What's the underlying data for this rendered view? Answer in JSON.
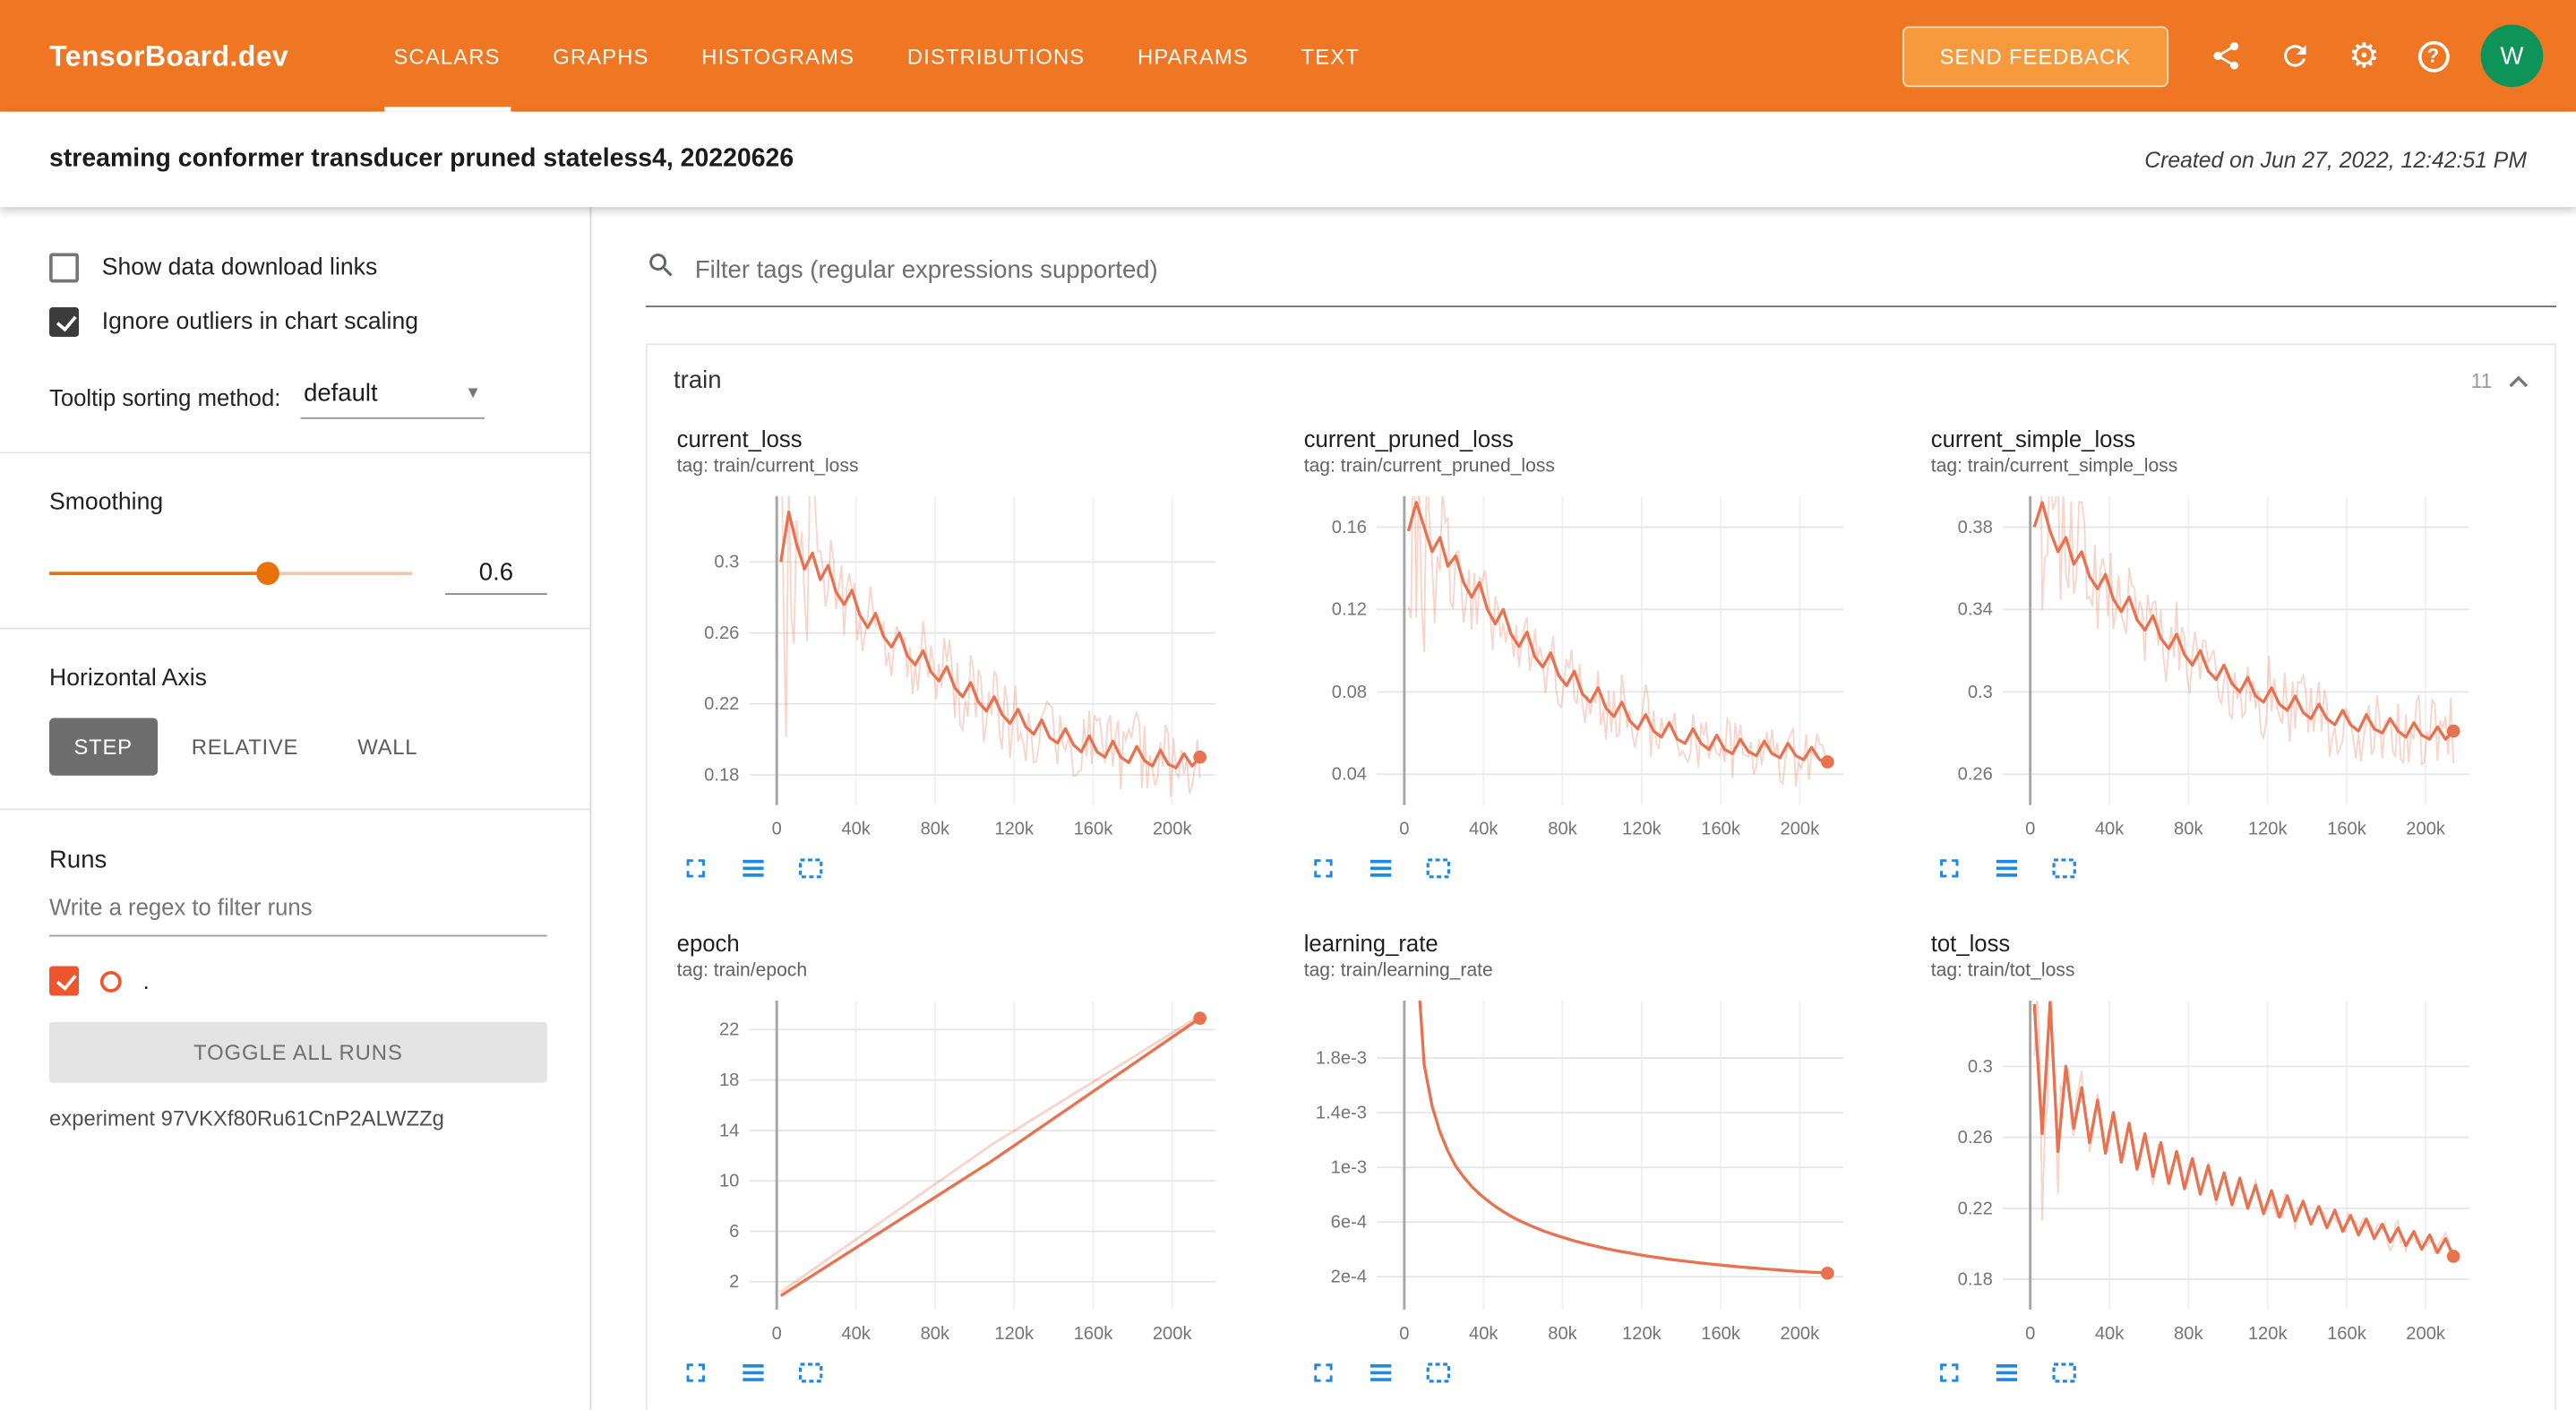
{
  "colors": {
    "header": "#ef7622",
    "accent_orange": "#e8710a",
    "run_color": "#ef562d",
    "chart_line": "#e8714f",
    "icon_blue": "#1e88e5",
    "avatar_green": "#0e9458"
  },
  "header": {
    "logo": "TensorBoard.dev",
    "tabs": [
      {
        "label": "SCALARS",
        "active": true
      },
      {
        "label": "GRAPHS",
        "active": false
      },
      {
        "label": "HISTOGRAMS",
        "active": false
      },
      {
        "label": "DISTRIBUTIONS",
        "active": false
      },
      {
        "label": "HPARAMS",
        "active": false
      },
      {
        "label": "TEXT",
        "active": false
      }
    ],
    "feedback_label": "SEND FEEDBACK",
    "avatar": "W"
  },
  "subheader": {
    "title": "streaming conformer transducer pruned stateless4, 20220626",
    "created": "Created on Jun 27, 2022, 12:42:51 PM"
  },
  "sidebar": {
    "show_links_label": "Show data download links",
    "ignore_outliers_label": "Ignore outliers in chart scaling",
    "tooltip_label": "Tooltip sorting method:",
    "tooltip_value": "default",
    "smoothing_label": "Smoothing",
    "smoothing_value": "0.6",
    "haxis_label": "Horizontal Axis",
    "haxis_options": [
      "STEP",
      "RELATIVE",
      "WALL"
    ],
    "haxis_active": "STEP",
    "runs_label": "Runs",
    "runs_filter_placeholder": "Write a regex to filter runs",
    "run_name": ".",
    "toggle_all_label": "TOGGLE ALL RUNS",
    "experiment": "experiment 97VKXf80Ru61CnP2ALWZZg"
  },
  "main": {
    "filter_placeholder": "Filter tags (regular expressions supported)",
    "group": {
      "name": "train",
      "count": "11"
    }
  },
  "chart_data": [
    {
      "type": "line",
      "title": "current_loss",
      "tag": "tag: train/current_loss",
      "x_start": 2000,
      "x_end": 214000,
      "xlim": [
        -14000,
        222000
      ],
      "xticks": [
        0,
        40000,
        80000,
        120000,
        160000,
        200000
      ],
      "xtick_labels": [
        "0",
        "40k",
        "80k",
        "120k",
        "160k",
        "200k"
      ],
      "ylim": [
        0.163,
        0.337
      ],
      "yticks": [
        0.18,
        0.22,
        0.26,
        0.3
      ],
      "ytick_labels": [
        "0.18",
        "0.22",
        "0.26",
        "0.3"
      ],
      "noise": 0.02,
      "spike": 7,
      "end_dot": true,
      "series": [
        {
          "name": "smoothed",
          "role": "smoothed",
          "values": [
            0.3,
            0.328,
            0.31,
            0.296,
            0.305,
            0.29,
            0.298,
            0.283,
            0.276,
            0.284,
            0.27,
            0.263,
            0.271,
            0.258,
            0.252,
            0.26,
            0.247,
            0.242,
            0.25,
            0.238,
            0.233,
            0.241,
            0.229,
            0.224,
            0.232,
            0.221,
            0.216,
            0.224,
            0.214,
            0.209,
            0.217,
            0.207,
            0.203,
            0.211,
            0.201,
            0.198,
            0.206,
            0.197,
            0.193,
            0.202,
            0.193,
            0.19,
            0.199,
            0.19,
            0.187,
            0.196,
            0.188,
            0.185,
            0.194,
            0.186,
            0.184,
            0.192,
            0.185,
            0.19
          ]
        }
      ]
    },
    {
      "type": "line",
      "title": "current_pruned_loss",
      "tag": "tag: train/current_pruned_loss",
      "x_start": 2000,
      "x_end": 214000,
      "xlim": [
        -14000,
        222000
      ],
      "xticks": [
        0,
        40000,
        80000,
        120000,
        160000,
        200000
      ],
      "xtick_labels": [
        "0",
        "40k",
        "80k",
        "120k",
        "160k",
        "200k"
      ],
      "ylim": [
        0.025,
        0.175
      ],
      "yticks": [
        0.04,
        0.08,
        0.12,
        0.16
      ],
      "ytick_labels": [
        "0.04",
        "0.08",
        "0.12",
        "0.16"
      ],
      "noise": 0.016,
      "spike": 7,
      "end_dot": true,
      "series": [
        {
          "name": "smoothed",
          "role": "smoothed",
          "values": [
            0.158,
            0.172,
            0.16,
            0.148,
            0.155,
            0.141,
            0.146,
            0.133,
            0.126,
            0.133,
            0.12,
            0.113,
            0.12,
            0.108,
            0.102,
            0.109,
            0.097,
            0.092,
            0.099,
            0.088,
            0.083,
            0.09,
            0.079,
            0.075,
            0.082,
            0.072,
            0.068,
            0.075,
            0.066,
            0.062,
            0.069,
            0.061,
            0.058,
            0.065,
            0.057,
            0.055,
            0.062,
            0.055,
            0.052,
            0.059,
            0.052,
            0.05,
            0.057,
            0.051,
            0.049,
            0.056,
            0.05,
            0.048,
            0.055,
            0.049,
            0.047,
            0.053,
            0.047,
            0.046
          ]
        }
      ]
    },
    {
      "type": "line",
      "title": "current_simple_loss",
      "tag": "tag: train/current_simple_loss",
      "x_start": 2000,
      "x_end": 214000,
      "xlim": [
        -14000,
        222000
      ],
      "xticks": [
        0,
        40000,
        80000,
        120000,
        160000,
        200000
      ],
      "xtick_labels": [
        "0",
        "40k",
        "80k",
        "120k",
        "160k",
        "200k"
      ],
      "ylim": [
        0.245,
        0.395
      ],
      "yticks": [
        0.26,
        0.3,
        0.34,
        0.38
      ],
      "ytick_labels": [
        "0.26",
        "0.3",
        "0.34",
        "0.38"
      ],
      "noise": 0.018,
      "spike": 7,
      "end_dot": true,
      "series": [
        {
          "name": "smoothed",
          "role": "smoothed",
          "values": [
            0.38,
            0.392,
            0.378,
            0.368,
            0.375,
            0.362,
            0.368,
            0.356,
            0.35,
            0.357,
            0.345,
            0.339,
            0.346,
            0.335,
            0.33,
            0.337,
            0.326,
            0.321,
            0.328,
            0.318,
            0.313,
            0.32,
            0.31,
            0.306,
            0.313,
            0.304,
            0.3,
            0.307,
            0.298,
            0.295,
            0.302,
            0.294,
            0.291,
            0.298,
            0.29,
            0.287,
            0.294,
            0.287,
            0.284,
            0.291,
            0.284,
            0.281,
            0.289,
            0.282,
            0.28,
            0.287,
            0.281,
            0.278,
            0.285,
            0.279,
            0.277,
            0.283,
            0.277,
            0.281
          ]
        }
      ]
    },
    {
      "type": "line",
      "title": "epoch",
      "tag": "tag: train/epoch",
      "x_start": 2000,
      "x_end": 214000,
      "xlim": [
        -14000,
        222000
      ],
      "xticks": [
        0,
        40000,
        80000,
        120000,
        160000,
        200000
      ],
      "xtick_labels": [
        "0",
        "40k",
        "80k",
        "120k",
        "160k",
        "200k"
      ],
      "ylim": [
        -0.2,
        24.3
      ],
      "yticks": [
        2,
        6,
        10,
        14,
        18,
        22
      ],
      "ytick_labels": [
        "2",
        "6",
        "10",
        "14",
        "18",
        "22"
      ],
      "noise": 0,
      "spike": 0,
      "end_dot": true,
      "series": [
        {
          "name": "raw",
          "role": "raw",
          "values": [
            1.2,
            12.8,
            23.1
          ]
        },
        {
          "name": "smoothed",
          "role": "smoothed",
          "values": [
            0.9,
            11.5,
            22.9
          ]
        }
      ]
    },
    {
      "type": "line",
      "title": "learning_rate",
      "tag": "tag: train/learning_rate",
      "x_start": 2000,
      "x_end": 214000,
      "xlim": [
        -14000,
        222000
      ],
      "xticks": [
        0,
        40000,
        80000,
        120000,
        160000,
        200000
      ],
      "xtick_labels": [
        "0",
        "40k",
        "80k",
        "120k",
        "160k",
        "200k"
      ],
      "ylim": [
        -4e-05,
        0.00222
      ],
      "yticks": [
        0.0002,
        0.0006,
        0.001,
        0.0014,
        0.0018
      ],
      "ytick_labels": [
        "2e-4",
        "6e-4",
        "1e-3",
        "1.4e-3",
        "1.8e-3"
      ],
      "noise": 0,
      "spike": 0,
      "end_dot": true,
      "series": [
        {
          "name": "smoothed",
          "role": "smoothed",
          "values": [
            0.0032,
            0.0026,
            0.00175,
            0.00145,
            0.00126,
            0.00112,
            0.00101,
            0.00093,
            0.00086,
            0.000805,
            0.000757,
            0.000714,
            0.000676,
            0.000642,
            0.000612,
            0.000585,
            0.00056,
            0.000537,
            0.000516,
            0.000497,
            0.000479,
            0.000462,
            0.000447,
            0.000432,
            0.000419,
            0.000406,
            0.000394,
            0.000383,
            0.000373,
            0.000363,
            0.000353,
            0.000345,
            0.000336,
            0.000328,
            0.000321,
            0.000313,
            0.000307,
            0.0003,
            0.000294,
            0.000288,
            0.000282,
            0.000277,
            0.000271,
            0.000266,
            0.000262,
            0.000257,
            0.000253,
            0.000248,
            0.000244,
            0.00024,
            0.000237,
            0.000233,
            0.00023,
            0.000226
          ]
        }
      ]
    },
    {
      "type": "line",
      "title": "tot_loss",
      "tag": "tag: train/tot_loss",
      "x_start": 2000,
      "x_end": 214000,
      "xlim": [
        -14000,
        222000
      ],
      "xticks": [
        0,
        40000,
        80000,
        120000,
        160000,
        200000
      ],
      "xtick_labels": [
        "0",
        "40k",
        "80k",
        "120k",
        "160k",
        "200k"
      ],
      "ylim": [
        0.163,
        0.337
      ],
      "yticks": [
        0.18,
        0.22,
        0.26,
        0.3
      ],
      "ytick_labels": [
        "0.18",
        "0.22",
        "0.26",
        "0.3"
      ],
      "noise": 0.005,
      "spike": 16,
      "end_dot": true,
      "series": [
        {
          "name": "smoothed",
          "role": "smoothed",
          "values": [
            0.335,
            0.262,
            0.336,
            0.252,
            0.3,
            0.265,
            0.288,
            0.257,
            0.281,
            0.251,
            0.274,
            0.246,
            0.268,
            0.242,
            0.262,
            0.238,
            0.257,
            0.234,
            0.252,
            0.231,
            0.248,
            0.228,
            0.244,
            0.225,
            0.24,
            0.222,
            0.237,
            0.22,
            0.233,
            0.217,
            0.23,
            0.215,
            0.227,
            0.213,
            0.224,
            0.211,
            0.221,
            0.209,
            0.219,
            0.207,
            0.216,
            0.205,
            0.214,
            0.203,
            0.211,
            0.201,
            0.209,
            0.199,
            0.207,
            0.197,
            0.205,
            0.195,
            0.203,
            0.193
          ]
        }
      ]
    }
  ]
}
